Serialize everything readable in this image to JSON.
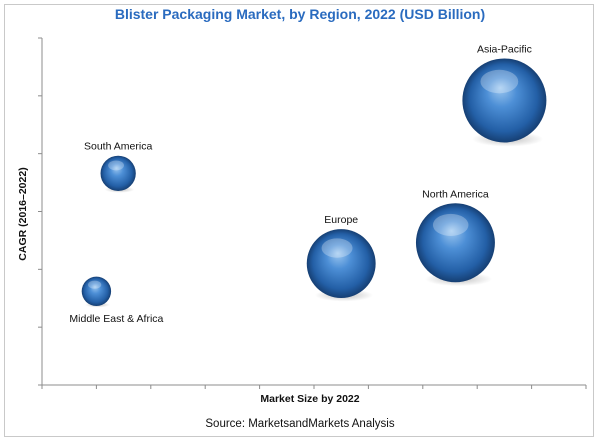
{
  "chart_data": {
    "type": "scatter",
    "title": "Blister Packaging Market, by Region, 2022 (USD Billion)",
    "xlabel": "Market Size by 2022",
    "ylabel": "CAGR (2016–2022)",
    "source": "Source: MarketsandMarkets Analysis",
    "grid": false,
    "bubble_color": "#2f6db5",
    "points": [
      {
        "label": "Asia-Pacific",
        "x": 0.85,
        "y": 0.82,
        "size": 1.0
      },
      {
        "label": "North America",
        "x": 0.76,
        "y": 0.41,
        "size": 0.94
      },
      {
        "label": "Europe",
        "x": 0.55,
        "y": 0.35,
        "size": 0.82
      },
      {
        "label": "South America",
        "x": 0.14,
        "y": 0.61,
        "size": 0.42
      },
      {
        "label": "Middle East & Africa",
        "x": 0.1,
        "y": 0.27,
        "size": 0.35
      }
    ]
  }
}
